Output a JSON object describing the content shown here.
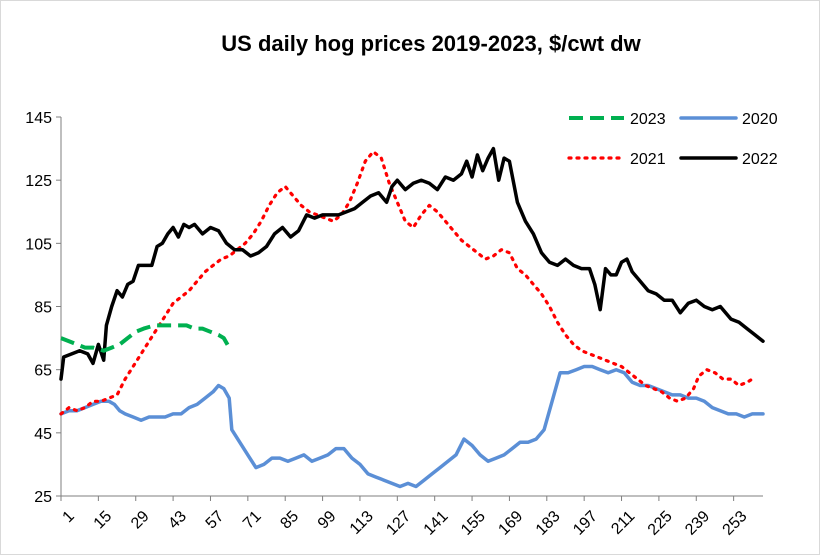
{
  "chart_data": {
    "type": "line",
    "title": "US daily hog prices 2019-2023, $/cwt dw",
    "xlabel": "",
    "ylabel": "",
    "xlim": [
      1,
      264
    ],
    "ylim": [
      25,
      145
    ],
    "y_ticks": [
      25,
      45,
      65,
      85,
      105,
      125,
      145
    ],
    "x_ticks": [
      1,
      15,
      29,
      43,
      57,
      71,
      85,
      99,
      113,
      127,
      141,
      155,
      169,
      183,
      197,
      211,
      225,
      239,
      253
    ],
    "grid": false,
    "legend_position": "top-right",
    "series": [
      {
        "name": "2023",
        "color": "#00b050",
        "style": "dashed",
        "points": [
          [
            1,
            75
          ],
          [
            4,
            74
          ],
          [
            7,
            73
          ],
          [
            10,
            72
          ],
          [
            13,
            72
          ],
          [
            17,
            71
          ],
          [
            20,
            72
          ],
          [
            23,
            73
          ],
          [
            26,
            75
          ],
          [
            29,
            77
          ],
          [
            32,
            78
          ],
          [
            36,
            79
          ],
          [
            40,
            79
          ],
          [
            44,
            79
          ],
          [
            48,
            79
          ],
          [
            51,
            78
          ],
          [
            54,
            78
          ],
          [
            57,
            77
          ],
          [
            60,
            76
          ],
          [
            62,
            75
          ],
          [
            64,
            72
          ]
        ]
      },
      {
        "name": "2020",
        "color": "#5b8fd6",
        "style": "solid",
        "points": [
          [
            1,
            51
          ],
          [
            4,
            52
          ],
          [
            7,
            52
          ],
          [
            10,
            53
          ],
          [
            13,
            54
          ],
          [
            16,
            55
          ],
          [
            19,
            55
          ],
          [
            21,
            54
          ],
          [
            23,
            52
          ],
          [
            25,
            51
          ],
          [
            28,
            50
          ],
          [
            31,
            49
          ],
          [
            34,
            50
          ],
          [
            37,
            50
          ],
          [
            40,
            50
          ],
          [
            43,
            51
          ],
          [
            46,
            51
          ],
          [
            49,
            53
          ],
          [
            52,
            54
          ],
          [
            55,
            56
          ],
          [
            58,
            58
          ],
          [
            60,
            60
          ],
          [
            62,
            59
          ],
          [
            64,
            56
          ],
          [
            65,
            46
          ],
          [
            68,
            42
          ],
          [
            71,
            38
          ],
          [
            74,
            34
          ],
          [
            77,
            35
          ],
          [
            80,
            37
          ],
          [
            83,
            37
          ],
          [
            86,
            36
          ],
          [
            89,
            37
          ],
          [
            92,
            38
          ],
          [
            95,
            36
          ],
          [
            98,
            37
          ],
          [
            101,
            38
          ],
          [
            104,
            40
          ],
          [
            107,
            40
          ],
          [
            110,
            37
          ],
          [
            113,
            35
          ],
          [
            116,
            32
          ],
          [
            119,
            31
          ],
          [
            122,
            30
          ],
          [
            125,
            29
          ],
          [
            128,
            28
          ],
          [
            131,
            29
          ],
          [
            134,
            28
          ],
          [
            137,
            30
          ],
          [
            140,
            32
          ],
          [
            143,
            34
          ],
          [
            146,
            36
          ],
          [
            149,
            38
          ],
          [
            152,
            43
          ],
          [
            155,
            41
          ],
          [
            158,
            38
          ],
          [
            161,
            36
          ],
          [
            164,
            37
          ],
          [
            167,
            38
          ],
          [
            170,
            40
          ],
          [
            173,
            42
          ],
          [
            176,
            42
          ],
          [
            179,
            43
          ],
          [
            182,
            46
          ],
          [
            185,
            55
          ],
          [
            188,
            64
          ],
          [
            191,
            64
          ],
          [
            194,
            65
          ],
          [
            197,
            66
          ],
          [
            200,
            66
          ],
          [
            203,
            65
          ],
          [
            206,
            64
          ],
          [
            209,
            65
          ],
          [
            212,
            64
          ],
          [
            215,
            61
          ],
          [
            218,
            60
          ],
          [
            221,
            60
          ],
          [
            224,
            59
          ],
          [
            227,
            58
          ],
          [
            230,
            57
          ],
          [
            233,
            57
          ],
          [
            236,
            56
          ],
          [
            239,
            56
          ],
          [
            242,
            55
          ],
          [
            245,
            53
          ],
          [
            248,
            52
          ],
          [
            251,
            51
          ],
          [
            254,
            51
          ],
          [
            257,
            50
          ],
          [
            260,
            51
          ],
          [
            264,
            51
          ]
        ]
      },
      {
        "name": "2021",
        "color": "#ff0000",
        "style": "dotted",
        "points": [
          [
            1,
            51
          ],
          [
            4,
            53
          ],
          [
            7,
            52
          ],
          [
            10,
            53
          ],
          [
            13,
            55
          ],
          [
            16,
            55
          ],
          [
            19,
            56
          ],
          [
            22,
            57
          ],
          [
            25,
            62
          ],
          [
            28,
            66
          ],
          [
            31,
            70
          ],
          [
            34,
            74
          ],
          [
            37,
            78
          ],
          [
            40,
            82
          ],
          [
            43,
            86
          ],
          [
            46,
            88
          ],
          [
            49,
            90
          ],
          [
            52,
            93
          ],
          [
            55,
            96
          ],
          [
            58,
            98
          ],
          [
            61,
            100
          ],
          [
            64,
            101
          ],
          [
            67,
            103
          ],
          [
            70,
            105
          ],
          [
            73,
            108
          ],
          [
            76,
            112
          ],
          [
            79,
            117
          ],
          [
            82,
            121
          ],
          [
            85,
            123
          ],
          [
            88,
            120
          ],
          [
            91,
            117
          ],
          [
            94,
            115
          ],
          [
            97,
            114
          ],
          [
            100,
            113
          ],
          [
            103,
            112
          ],
          [
            106,
            114
          ],
          [
            109,
            118
          ],
          [
            112,
            124
          ],
          [
            115,
            131
          ],
          [
            118,
            134
          ],
          [
            121,
            132
          ],
          [
            124,
            124
          ],
          [
            127,
            118
          ],
          [
            130,
            112
          ],
          [
            133,
            110
          ],
          [
            136,
            114
          ],
          [
            139,
            117
          ],
          [
            142,
            115
          ],
          [
            145,
            112
          ],
          [
            148,
            109
          ],
          [
            151,
            106
          ],
          [
            154,
            104
          ],
          [
            157,
            102
          ],
          [
            160,
            100
          ],
          [
            163,
            101
          ],
          [
            166,
            103
          ],
          [
            169,
            102
          ],
          [
            172,
            97
          ],
          [
            175,
            95
          ],
          [
            178,
            92
          ],
          [
            181,
            89
          ],
          [
            184,
            85
          ],
          [
            187,
            80
          ],
          [
            190,
            76
          ],
          [
            193,
            73
          ],
          [
            196,
            71
          ],
          [
            199,
            70
          ],
          [
            202,
            69
          ],
          [
            205,
            68
          ],
          [
            208,
            67
          ],
          [
            211,
            66
          ],
          [
            214,
            64
          ],
          [
            217,
            62
          ],
          [
            220,
            60
          ],
          [
            223,
            59
          ],
          [
            226,
            58
          ],
          [
            229,
            56
          ],
          [
            232,
            55
          ],
          [
            235,
            56
          ],
          [
            238,
            59
          ],
          [
            240,
            63
          ],
          [
            243,
            65
          ],
          [
            246,
            64
          ],
          [
            249,
            62
          ],
          [
            252,
            62
          ],
          [
            255,
            60
          ],
          [
            258,
            61
          ],
          [
            260,
            62
          ]
        ]
      },
      {
        "name": "2022",
        "color": "#000000",
        "style": "solid",
        "points": [
          [
            1,
            62
          ],
          [
            2,
            69
          ],
          [
            5,
            70
          ],
          [
            8,
            71
          ],
          [
            11,
            70
          ],
          [
            13,
            67
          ],
          [
            15,
            73
          ],
          [
            17,
            68
          ],
          [
            18,
            79
          ],
          [
            20,
            85
          ],
          [
            22,
            90
          ],
          [
            24,
            88
          ],
          [
            26,
            92
          ],
          [
            28,
            93
          ],
          [
            30,
            98
          ],
          [
            32,
            98
          ],
          [
            35,
            98
          ],
          [
            37,
            104
          ],
          [
            39,
            105
          ],
          [
            41,
            108
          ],
          [
            43,
            110
          ],
          [
            45,
            107
          ],
          [
            47,
            111
          ],
          [
            49,
            110
          ],
          [
            51,
            111
          ],
          [
            54,
            108
          ],
          [
            57,
            110
          ],
          [
            60,
            109
          ],
          [
            63,
            105
          ],
          [
            66,
            103
          ],
          [
            69,
            103
          ],
          [
            72,
            101
          ],
          [
            75,
            102
          ],
          [
            78,
            104
          ],
          [
            81,
            108
          ],
          [
            84,
            110
          ],
          [
            87,
            107
          ],
          [
            90,
            109
          ],
          [
            93,
            114
          ],
          [
            96,
            113
          ],
          [
            99,
            114
          ],
          [
            102,
            114
          ],
          [
            105,
            114
          ],
          [
            108,
            115
          ],
          [
            111,
            116
          ],
          [
            114,
            118
          ],
          [
            117,
            120
          ],
          [
            120,
            121
          ],
          [
            123,
            118
          ],
          [
            125,
            123
          ],
          [
            127,
            125
          ],
          [
            130,
            122
          ],
          [
            133,
            124
          ],
          [
            136,
            125
          ],
          [
            139,
            124
          ],
          [
            142,
            122
          ],
          [
            145,
            126
          ],
          [
            148,
            125
          ],
          [
            151,
            127
          ],
          [
            153,
            131
          ],
          [
            155,
            126
          ],
          [
            157,
            133
          ],
          [
            159,
            128
          ],
          [
            161,
            132
          ],
          [
            163,
            135
          ],
          [
            165,
            125
          ],
          [
            167,
            132
          ],
          [
            169,
            131
          ],
          [
            172,
            118
          ],
          [
            175,
            112
          ],
          [
            178,
            108
          ],
          [
            181,
            102
          ],
          [
            184,
            99
          ],
          [
            187,
            98
          ],
          [
            190,
            100
          ],
          [
            193,
            98
          ],
          [
            196,
            97
          ],
          [
            199,
            97
          ],
          [
            201,
            92
          ],
          [
            203,
            84
          ],
          [
            205,
            97
          ],
          [
            207,
            95
          ],
          [
            209,
            95
          ],
          [
            211,
            99
          ],
          [
            213,
            100
          ],
          [
            215,
            96
          ],
          [
            218,
            93
          ],
          [
            221,
            90
          ],
          [
            224,
            89
          ],
          [
            227,
            87
          ],
          [
            230,
            87
          ],
          [
            233,
            83
          ],
          [
            236,
            86
          ],
          [
            239,
            87
          ],
          [
            242,
            85
          ],
          [
            245,
            84
          ],
          [
            248,
            85
          ],
          [
            250,
            83
          ],
          [
            252,
            81
          ],
          [
            255,
            80
          ],
          [
            258,
            78
          ],
          [
            261,
            76
          ],
          [
            264,
            74
          ]
        ]
      }
    ]
  }
}
